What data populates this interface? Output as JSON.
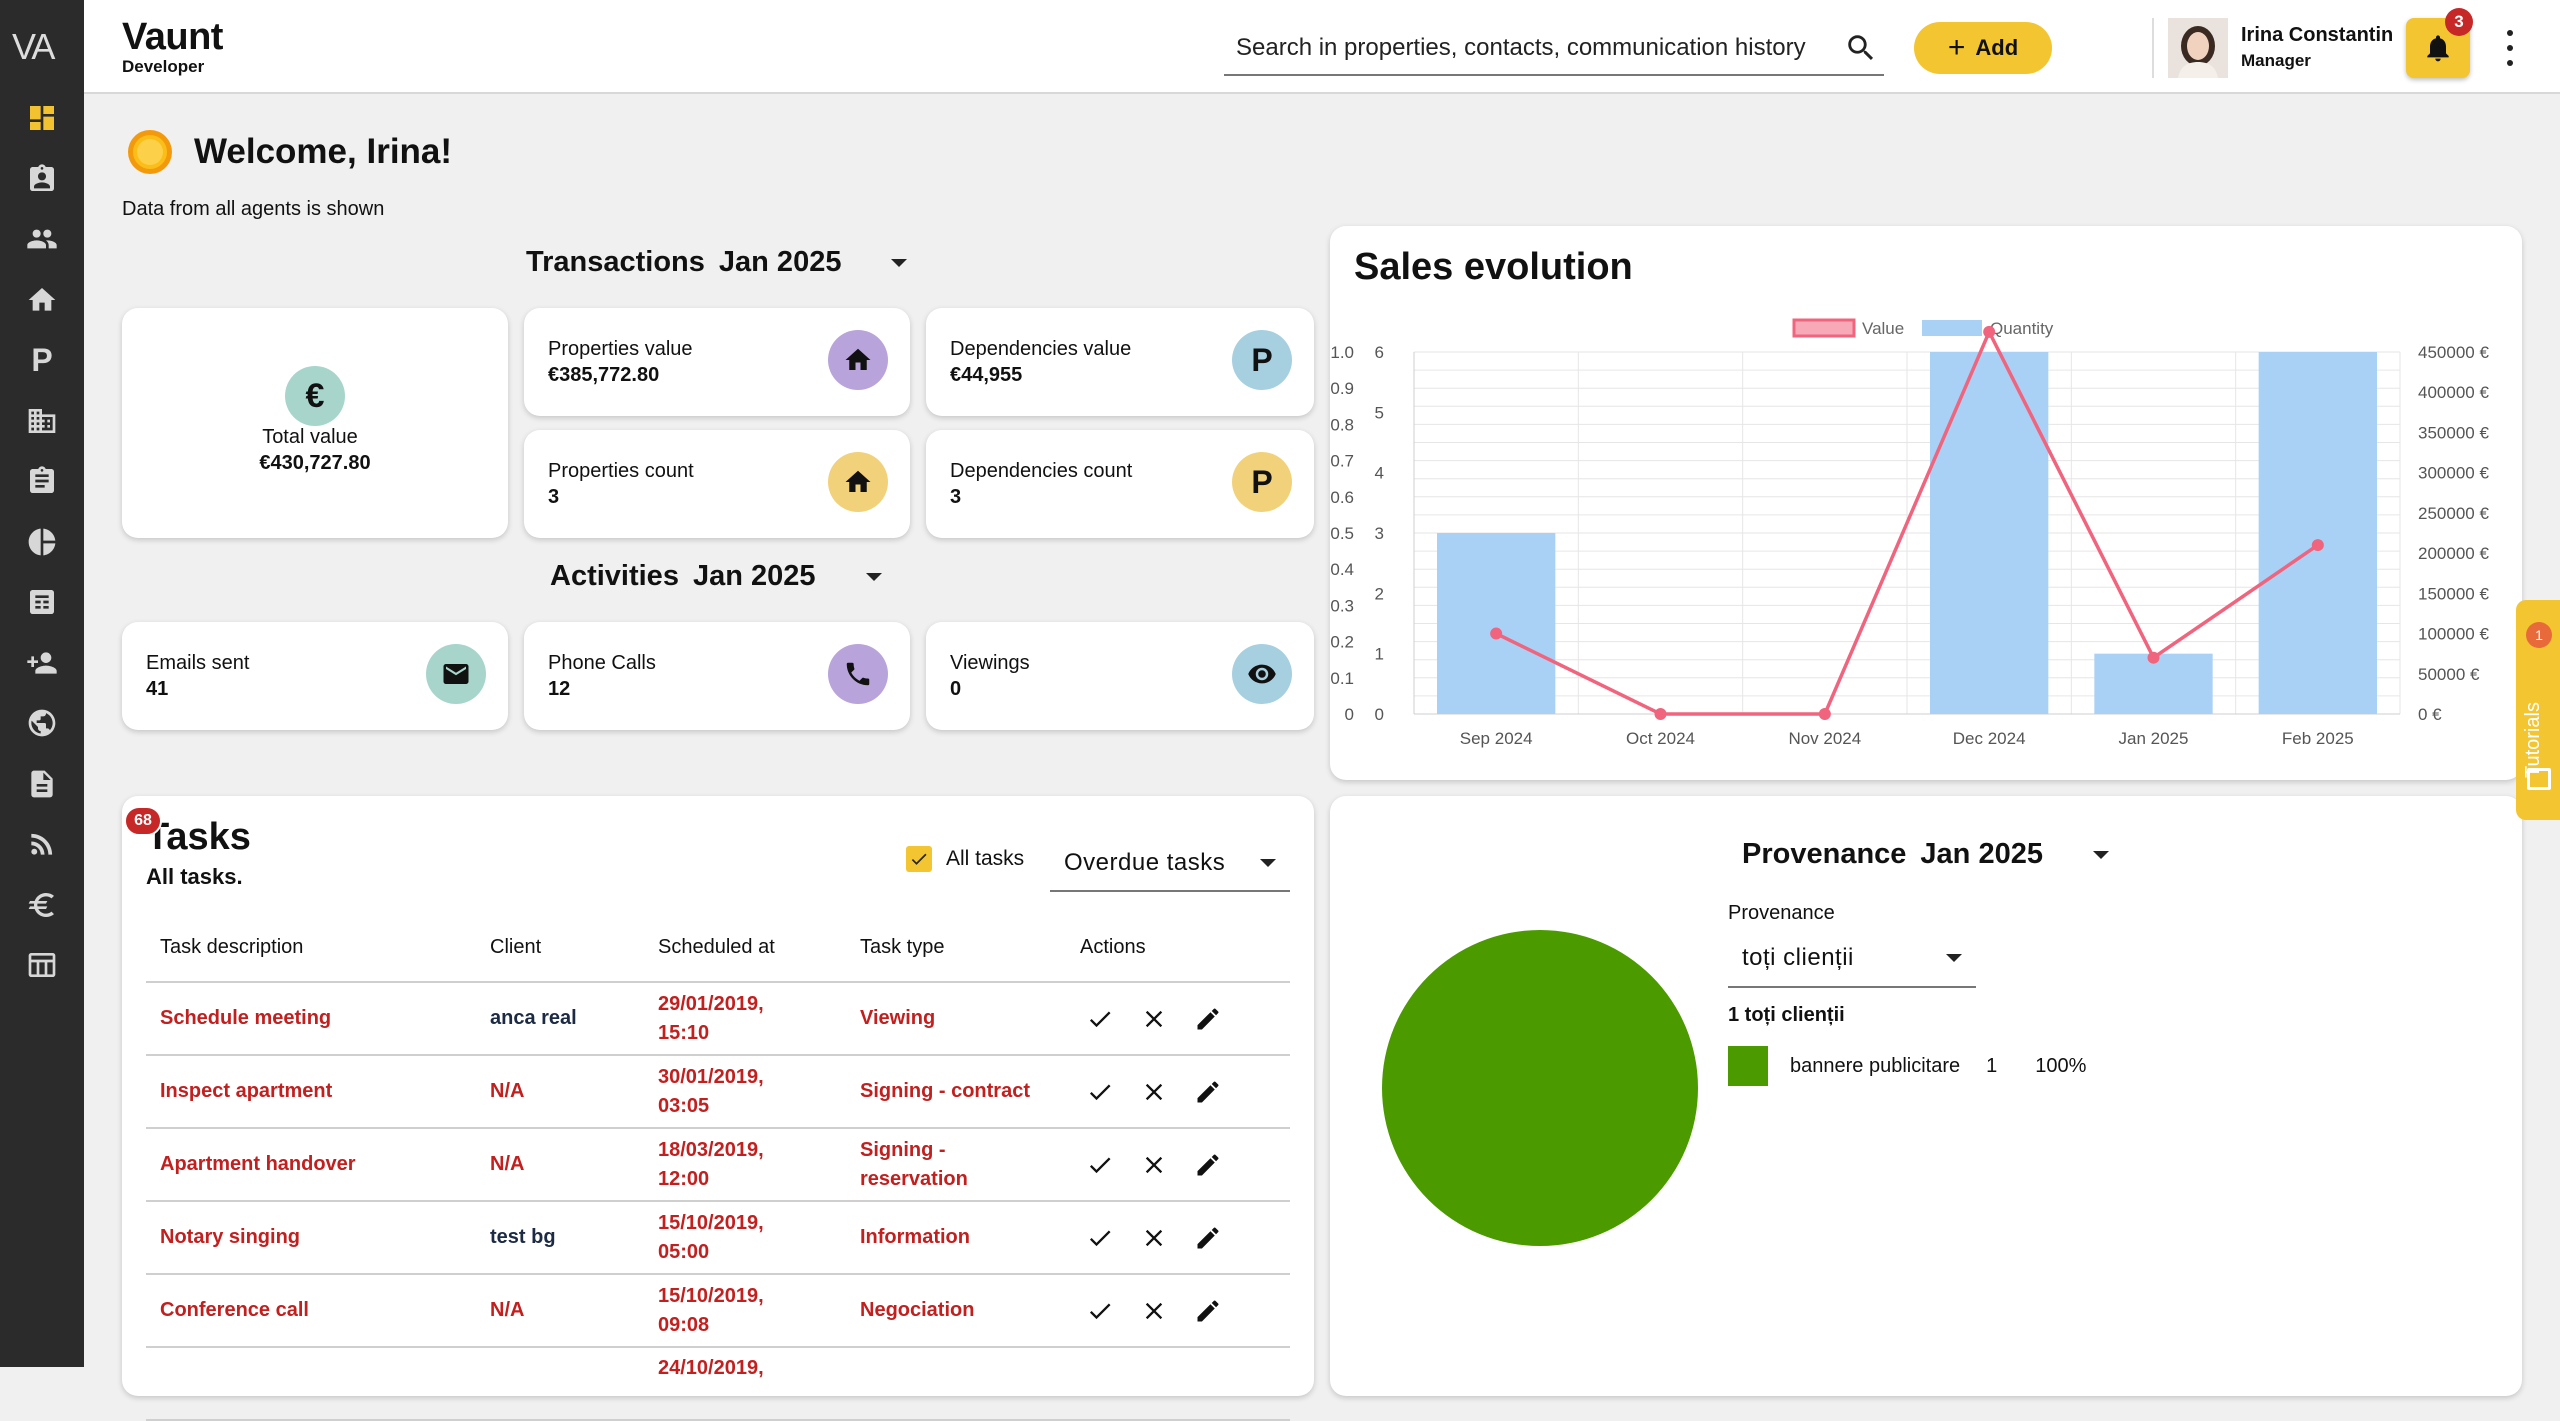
{
  "app": {
    "logo": "VA",
    "name": "Vaunt",
    "subtitle": "Developer"
  },
  "search": {
    "placeholder": "Search in properties, contacts, communication history"
  },
  "header": {
    "add_label": "Add",
    "user_name": "Irina Constantin",
    "user_role": "Manager",
    "notifications_count": "3"
  },
  "sidebar": {
    "items": [
      {
        "icon": "dashboard-icon",
        "active": true
      },
      {
        "icon": "contacts-icon"
      },
      {
        "icon": "people-icon"
      },
      {
        "icon": "home-icon"
      },
      {
        "icon": "parking-icon"
      },
      {
        "icon": "building-icon"
      },
      {
        "icon": "clipboard-icon"
      },
      {
        "icon": "pie-chart-icon"
      },
      {
        "icon": "calculator-icon"
      },
      {
        "icon": "add-user-icon"
      },
      {
        "icon": "globe-icon"
      },
      {
        "icon": "document-icon"
      },
      {
        "icon": "rss-icon"
      },
      {
        "icon": "euro-icon"
      },
      {
        "icon": "table-icon"
      }
    ]
  },
  "welcome": {
    "title": "Welcome, Irina!",
    "note": "Data from all agents is shown"
  },
  "transactions": {
    "title": "Transactions",
    "period": "Jan 2025",
    "total_label": "Total value",
    "total_value": "€430,727.80",
    "properties_value_label": "Properties value",
    "properties_value": "€385,772.80",
    "dependencies_value_label": "Dependencies value",
    "dependencies_value": "€44,955",
    "properties_count_label": "Properties count",
    "properties_count": "3",
    "dependencies_count_label": "Dependencies count",
    "dependencies_count": "3"
  },
  "activities": {
    "title": "Activities",
    "period": "Jan 2025",
    "emails_label": "Emails sent",
    "emails": "41",
    "calls_label": "Phone Calls",
    "calls": "12",
    "viewings_label": "Viewings",
    "viewings": "0"
  },
  "tasks": {
    "badge": "68",
    "title": "Tasks",
    "subtitle": "All tasks.",
    "all_tasks_label": "All tasks",
    "filter": "Overdue tasks",
    "columns": [
      "Task description",
      "Client",
      "Scheduled at",
      "Task type",
      "Actions"
    ],
    "rows": [
      {
        "description": "Schedule meeting",
        "client": "anca real",
        "date": "29/01/2019,",
        "time": "15:10",
        "type": "Viewing",
        "type2": ""
      },
      {
        "description": "Inspect apartment",
        "client": "N/A",
        "date": "30/01/2019,",
        "time": "03:05",
        "type": "Signing - contract",
        "type2": ""
      },
      {
        "description": "Apartment handover",
        "client": "N/A",
        "date": "18/03/2019,",
        "time": "12:00",
        "type": "Signing -",
        "type2": "reservation"
      },
      {
        "description": "Notary singing",
        "client": "test bg",
        "date": "15/10/2019,",
        "time": "05:00",
        "type": "Information",
        "type2": ""
      },
      {
        "description": "Conference call",
        "client": "N/A",
        "date": "15/10/2019,",
        "time": "09:08",
        "type": "Negociation",
        "type2": ""
      }
    ],
    "partial_row_date": "24/10/2019,"
  },
  "chart_data": {
    "type": "bar+line",
    "title": "Sales evolution",
    "categories": [
      "Sep 2024",
      "Oct 2024",
      "Nov 2024",
      "Dec 2024",
      "Jan 2025",
      "Feb 2025"
    ],
    "series": [
      {
        "name": "Value",
        "type": "line",
        "axis": "right",
        "color": "#f0647e",
        "values": [
          100000,
          0,
          0,
          475000,
          70000,
          210000
        ]
      },
      {
        "name": "Quantity",
        "type": "bar",
        "axis": "left-inner",
        "color": "#a9d1f5",
        "values": [
          3,
          0,
          0,
          6,
          1,
          6
        ]
      }
    ],
    "y_outer_ticks": [
      "1.0",
      "0.9",
      "0.8",
      "0.7",
      "0.6",
      "0.5",
      "0.4",
      "0.3",
      "0.2",
      "0.1",
      "0"
    ],
    "y_left_ticks": [
      "6",
      "5",
      "4",
      "3",
      "2",
      "1",
      "0"
    ],
    "y_right_ticks": [
      "450000 €",
      "400000 €",
      "350000 €",
      "300000 €",
      "250000 €",
      "200000 €",
      "150000 €",
      "100000 €",
      "50000 €",
      "0 €"
    ],
    "ylim_left": [
      0,
      6
    ],
    "ylim_right": [
      0,
      450000
    ],
    "legend": "top-center",
    "grid": true
  },
  "provenance": {
    "title": "Provenance",
    "period": "Jan 2025",
    "field_label": "Provenance",
    "selected": "toți clienții",
    "summary": "1 toți clienții",
    "legend_name": "bannere publicitare",
    "legend_count": "1",
    "legend_pct": "100%",
    "slice_fraction": 1.0,
    "color": "#4b9a00"
  },
  "tutorials": {
    "label": "Tutorials",
    "badge": "1"
  }
}
